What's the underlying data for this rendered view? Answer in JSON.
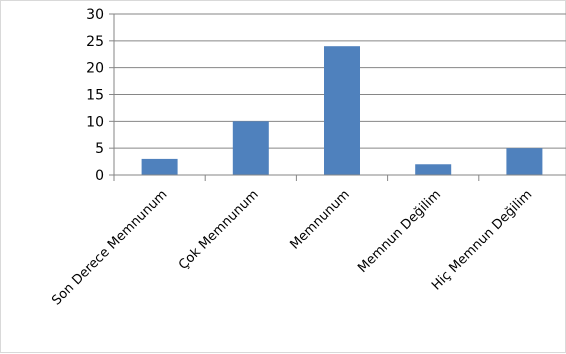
{
  "chart_data": {
    "type": "bar",
    "categories": [
      "Son Derece Memnunum",
      "Çok Memnunum",
      "Memnunum",
      "Memnun Değilim",
      "Hiç Memnun Değilim"
    ],
    "values": [
      3,
      10,
      24,
      2,
      5
    ],
    "ylim": [
      0,
      30
    ],
    "yticks": [
      0,
      5,
      10,
      15,
      20,
      25,
      30
    ],
    "grid": true,
    "legend": "none",
    "bar_color": "#4F81BD"
  }
}
